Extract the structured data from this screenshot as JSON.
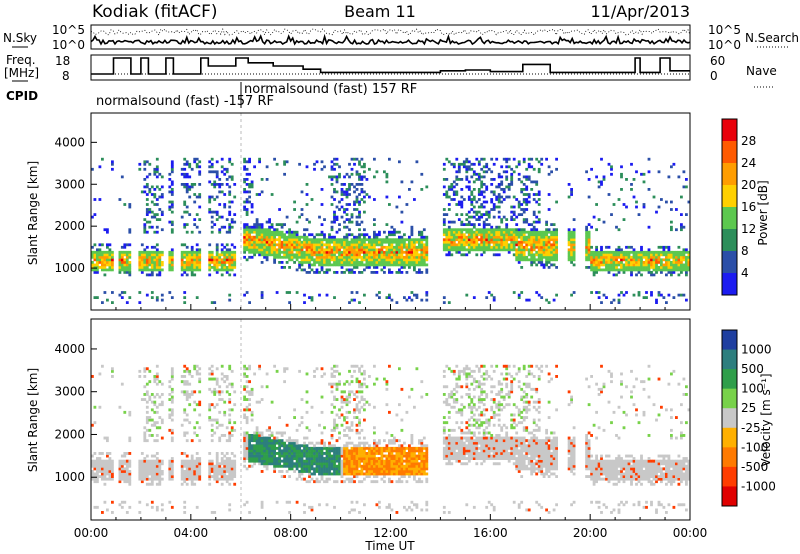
{
  "header": {
    "station": "Kodiak (fitACF)",
    "beam": "Beam 11",
    "date": "11/Apr/2013"
  },
  "top_panels": {
    "nsky": {
      "left_label": "N.Sky",
      "right_label": "N.Search",
      "ticks": [
        "10^5",
        "10^0"
      ]
    },
    "freq": {
      "left_label_1": "Freq.",
      "left_label_2": "[MHz]",
      "right_label": "Nave",
      "left_ticks": [
        "18",
        "8"
      ],
      "right_ticks": [
        "60",
        "0"
      ]
    },
    "cpid": {
      "label": "CPID",
      "modes": [
        "normalsound (fast) -157 RF",
        "normalsound (fast) 157 RF"
      ]
    }
  },
  "chart_data": [
    {
      "type": "heatmap",
      "name": "power",
      "ylabel": "Slant Range [km]",
      "xlabel": "",
      "x_ticks": [
        "00:00",
        "04:00",
        "08:00",
        "12:00",
        "16:00",
        "20:00",
        "00:00"
      ],
      "y_ticks": [
        1000,
        2000,
        3000,
        4000
      ],
      "ylim": [
        0,
        4700
      ],
      "colorbar": {
        "label": "Power [dB]",
        "ticks": [
          28,
          24,
          20,
          16,
          12,
          8,
          4
        ],
        "colors": [
          "#e8000b",
          "#ff5a00",
          "#ff9d00",
          "#ffd000",
          "#5cc84f",
          "#2c8e5a",
          "#2b4fa8",
          "#1c1cf0"
        ]
      }
    },
    {
      "type": "heatmap",
      "name": "velocity",
      "ylabel": "Slant Range [km]",
      "xlabel": "Time UT",
      "x_ticks": [
        "00:00",
        "04:00",
        "08:00",
        "12:00",
        "16:00",
        "20:00",
        "00:00"
      ],
      "y_ticks": [
        1000,
        2000,
        3000,
        4000
      ],
      "ylim": [
        0,
        4700
      ],
      "colorbar": {
        "label": "Velocity [m s⁻¹]",
        "ticks": [
          1000,
          500,
          100,
          25,
          -25,
          -100,
          -500,
          -1000
        ],
        "colors": [
          "#1f3fa0",
          "#2d7e7e",
          "#2f9e4a",
          "#78d24a",
          "#c8c8c8",
          "#ffb000",
          "#ff7a00",
          "#ff3d00",
          "#e00000"
        ]
      }
    }
  ]
}
